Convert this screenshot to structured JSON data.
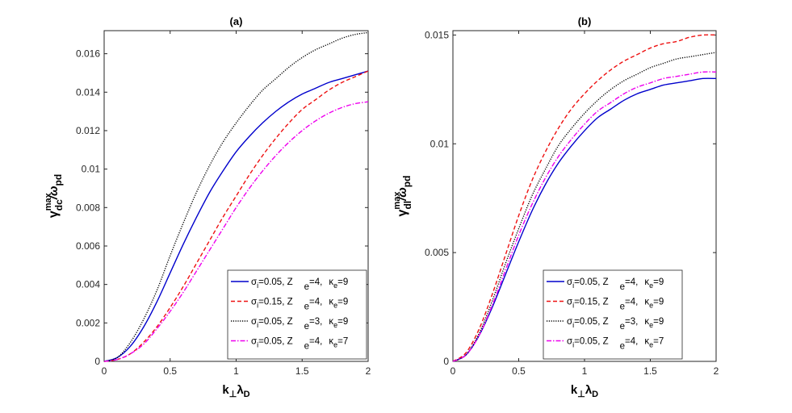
{
  "chart_data": [
    {
      "type": "line",
      "title": "(a)",
      "xlabel": {
        "main": "k",
        "sub1": "⊥",
        "mid": "λ",
        "sub2": "D"
      },
      "ylabel": {
        "main": "γ",
        "sup": "max",
        "sub": "dc",
        "rest": "/ω",
        "sub2": "pd"
      },
      "xlim": [
        0,
        2
      ],
      "ylim": [
        0,
        0.0172
      ],
      "xticks": [
        0,
        0.5,
        1,
        1.5,
        2
      ],
      "xtick_labels": [
        "0",
        "0.5",
        "1",
        "1.5",
        "2"
      ],
      "yticks": [
        0,
        0.002,
        0.004,
        0.006,
        0.008,
        0.01,
        0.012,
        0.014,
        0.016
      ],
      "ytick_labels": [
        "0",
        "0.002",
        "0.004",
        "0.006",
        "0.008",
        "0.01",
        "0.012",
        "0.014",
        "0.016"
      ],
      "legend_position": "bottom-right",
      "x": [
        0,
        0.1,
        0.2,
        0.3,
        0.4,
        0.5,
        0.6,
        0.7,
        0.8,
        0.9,
        1.0,
        1.1,
        1.2,
        1.3,
        1.4,
        1.5,
        1.6,
        1.7,
        1.8,
        1.9,
        2.0
      ],
      "series": [
        {
          "name": "σi=0.05, Z e=4, κe=9",
          "legend": {
            "a": "σ",
            "a_sub": "i",
            "b": "=0.05, Z",
            "c": "e",
            "d": "=4,",
            "e": "κ",
            "e_sub": "e",
            "f": "=9"
          },
          "color": "#0000cc",
          "dash": "solid",
          "values": [
            0,
            0.0002,
            0.0008,
            0.0018,
            0.0031,
            0.0046,
            0.0061,
            0.0075,
            0.0088,
            0.0099,
            0.0109,
            0.0117,
            0.0124,
            0.013,
            0.0135,
            0.0139,
            0.0142,
            0.0145,
            0.0147,
            0.0149,
            0.0151
          ]
        },
        {
          "name": "σi=0.15, Z e=4, κe=9",
          "legend": {
            "a": "σ",
            "a_sub": "i",
            "b": "=0.15, Z",
            "c": "e",
            "d": "=4,",
            "e": "κ",
            "e_sub": "e",
            "f": "=9"
          },
          "color": "#ee1111",
          "dash": "dashed",
          "values": [
            0,
            0.0001,
            0.0004,
            0.001,
            0.0018,
            0.0028,
            0.0039,
            0.0051,
            0.0063,
            0.0075,
            0.0086,
            0.0097,
            0.0107,
            0.0116,
            0.0124,
            0.0131,
            0.0136,
            0.0141,
            0.0145,
            0.0148,
            0.0151
          ]
        },
        {
          "name": "σi=0.05, Z e=3, κe=9",
          "legend": {
            "a": "σ",
            "a_sub": "i",
            "b": "=0.05, Z",
            "c": "e",
            "d": "=3,",
            "e": "κ",
            "e_sub": "e",
            "f": "=9"
          },
          "color": "#000000",
          "dash": "dotted",
          "values": [
            0,
            0.0002,
            0.001,
            0.0022,
            0.0037,
            0.0055,
            0.0072,
            0.0088,
            0.0102,
            0.0114,
            0.0124,
            0.0133,
            0.0141,
            0.0147,
            0.0153,
            0.0158,
            0.0162,
            0.0165,
            0.0168,
            0.017,
            0.0171
          ]
        },
        {
          "name": "σi=0.05, Z e=4, κe=7",
          "legend": {
            "a": "σ",
            "a_sub": "i",
            "b": "=0.05, Z",
            "c": "e",
            "d": "=4,",
            "e": "κ",
            "e_sub": "e",
            "f": "=7"
          },
          "color": "#ee00ee",
          "dash": "dashdot",
          "values": [
            0,
            0.0001,
            0.0004,
            0.0009,
            0.0017,
            0.0026,
            0.0036,
            0.0047,
            0.0058,
            0.0069,
            0.008,
            0.009,
            0.0099,
            0.0107,
            0.0114,
            0.012,
            0.0125,
            0.0129,
            0.0132,
            0.0134,
            0.0135
          ]
        }
      ]
    },
    {
      "type": "line",
      "title": "(b)",
      "xlabel": {
        "main": "k",
        "sub1": "⊥",
        "mid": "λ",
        "sub2": "D"
      },
      "ylabel": {
        "main": "γ",
        "sup": "max",
        "sub": "dl",
        "rest": "/ω",
        "sub2": "pd"
      },
      "xlim": [
        0,
        2
      ],
      "ylim": [
        0,
        0.0152
      ],
      "xticks": [
        0,
        0.5,
        1,
        1.5,
        2
      ],
      "xtick_labels": [
        "0",
        "0.5",
        "1",
        "1.5",
        "2"
      ],
      "yticks": [
        0,
        0.005,
        0.01,
        0.015
      ],
      "ytick_labels": [
        "0",
        "0.005",
        "0.01",
        "0.015"
      ],
      "legend_position": "bottom-right",
      "x": [
        0,
        0.1,
        0.2,
        0.3,
        0.4,
        0.5,
        0.6,
        0.7,
        0.8,
        0.9,
        1.0,
        1.1,
        1.2,
        1.3,
        1.4,
        1.5,
        1.6,
        1.7,
        1.8,
        1.9,
        2.0
      ],
      "series": [
        {
          "name": "σi=0.05, Z e=4, κe=9",
          "legend": {
            "a": "σ",
            "a_sub": "i",
            "b": "=0.05, Z",
            "c": "e",
            "d": "=4,",
            "e": "κ",
            "e_sub": "e",
            "f": "=9"
          },
          "color": "#0000cc",
          "dash": "solid",
          "values": [
            0,
            0.0003,
            0.0012,
            0.0025,
            0.004,
            0.0055,
            0.0069,
            0.0081,
            0.0091,
            0.0099,
            0.0106,
            0.0112,
            0.0116,
            0.012,
            0.0123,
            0.0125,
            0.0127,
            0.0128,
            0.0129,
            0.013,
            0.013
          ]
        },
        {
          "name": "σi=0.15, Z e=4, κe=9",
          "legend": {
            "a": "σ",
            "a_sub": "i",
            "b": "=0.15, Z",
            "c": "e",
            "d": "=4,",
            "e": "κ",
            "e_sub": "e",
            "f": "=9"
          },
          "color": "#ee1111",
          "dash": "dashed",
          "values": [
            0,
            0.0004,
            0.0015,
            0.0031,
            0.0049,
            0.0067,
            0.0083,
            0.0096,
            0.0107,
            0.0116,
            0.0123,
            0.0129,
            0.0134,
            0.0138,
            0.0141,
            0.0144,
            0.0146,
            0.0147,
            0.0149,
            0.015,
            0.015
          ]
        },
        {
          "name": "σi=0.05, Z e=3, κe=9",
          "legend": {
            "a": "σ",
            "a_sub": "i",
            "b": "=0.05, Z",
            "c": "e",
            "d": "=3,",
            "e": "κ",
            "e_sub": "e",
            "f": "=9"
          },
          "color": "#000000",
          "dash": "dotted",
          "values": [
            0,
            0.0003,
            0.0013,
            0.0028,
            0.0045,
            0.0061,
            0.0076,
            0.0088,
            0.0099,
            0.0107,
            0.0114,
            0.012,
            0.0125,
            0.0129,
            0.0132,
            0.0135,
            0.0137,
            0.0139,
            0.014,
            0.0141,
            0.0142
          ]
        },
        {
          "name": "σi=0.05, Z e=4, κe=7",
          "legend": {
            "a": "σ",
            "a_sub": "i",
            "b": "=0.05, Z",
            "c": "e",
            "d": "=4,",
            "e": "κ",
            "e_sub": "e",
            "f": "=7"
          },
          "color": "#ee00ee",
          "dash": "dashdot",
          "values": [
            0,
            0.0003,
            0.0012,
            0.0026,
            0.0042,
            0.0058,
            0.0072,
            0.0084,
            0.0094,
            0.0102,
            0.0109,
            0.0115,
            0.0119,
            0.0123,
            0.0126,
            0.0128,
            0.013,
            0.0131,
            0.0132,
            0.0133,
            0.0133
          ]
        }
      ]
    }
  ]
}
